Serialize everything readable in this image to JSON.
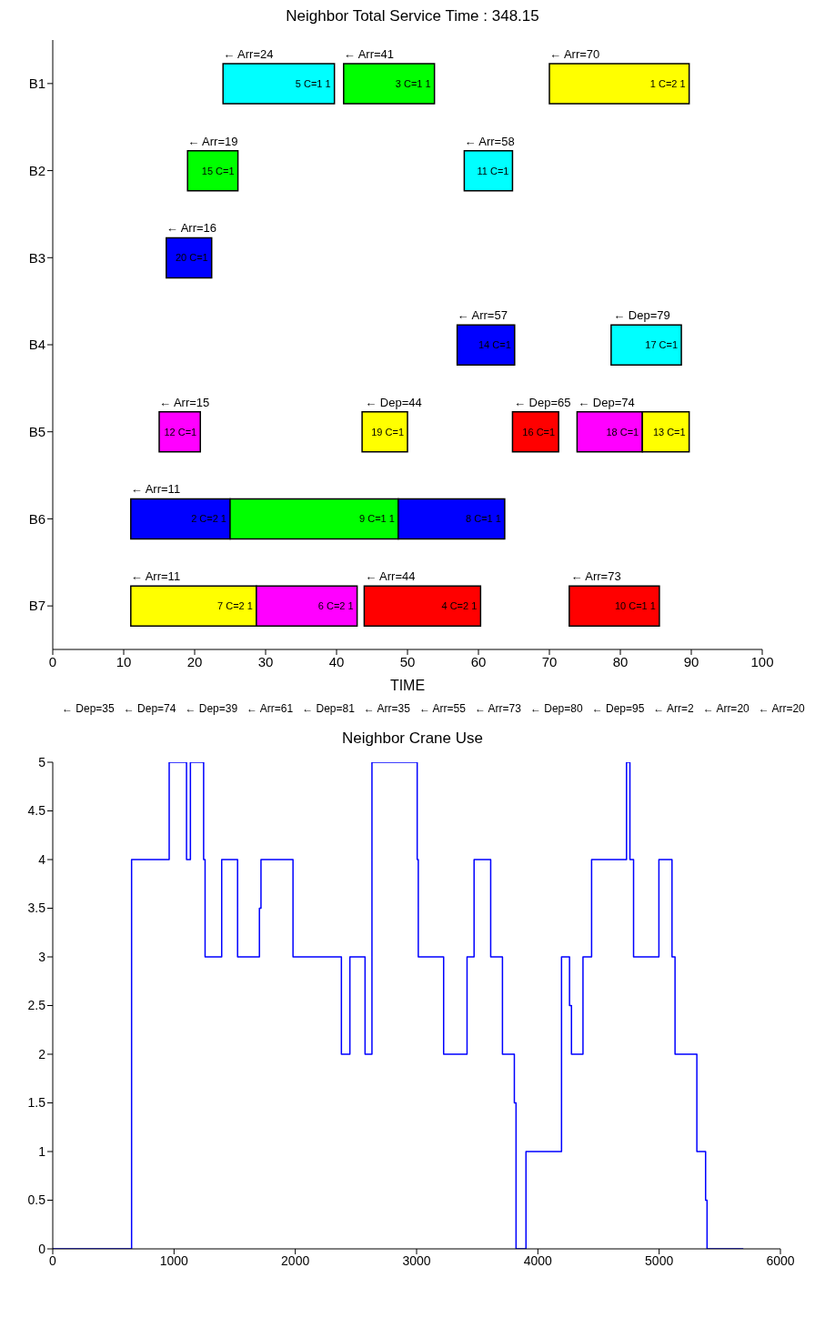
{
  "chart_data": [
    {
      "type": "bar",
      "title": "Neighbor Total Service Time :  348.15",
      "xlabel": "TIME",
      "orientation": "horizontal",
      "categories": [
        "B1",
        "B2",
        "B3",
        "B4",
        "B5",
        "B6",
        "B7"
      ],
      "xlim": [
        0,
        100
      ],
      "xticks": [
        0,
        10,
        20,
        30,
        40,
        50,
        60,
        70,
        80,
        90,
        100
      ],
      "series": [
        {
          "values": [
            15.7,
            7.1,
            6.4,
            8.1,
            5.8,
            14,
            17.7
          ],
          "base": [
            24,
            19,
            16,
            57,
            15,
            11,
            11
          ],
          "colors": [
            "#00ffff",
            "#00ff00",
            "#0000ff",
            "#0000ff",
            "#ff00ff",
            "#0000ff",
            "#ffff00"
          ]
        },
        {
          "values": [
            12.8,
            6.8,
            null,
            9.9,
            6.4,
            23.7,
            14.2
          ],
          "base": [
            41,
            58,
            null,
            78.7,
            43.6,
            25,
            28.7
          ],
          "colors": [
            "#00ff00",
            "#00ffff",
            null,
            "#00ffff",
            "#ffff00",
            "#00ff00",
            "#ff00ff"
          ]
        },
        {
          "values": [
            19.7,
            null,
            null,
            null,
            6.5,
            15,
            16.4
          ],
          "base": [
            70,
            null,
            null,
            null,
            64.8,
            48.7,
            43.9
          ],
          "colors": [
            "#ffff00",
            null,
            null,
            null,
            "#ff0000",
            "#0000ff",
            "#ff0000"
          ]
        },
        {
          "values": [
            null,
            null,
            null,
            null,
            9.2,
            null,
            12.7
          ],
          "base": [
            null,
            null,
            null,
            null,
            73.9,
            null,
            72.8
          ],
          "colors": [
            null,
            null,
            null,
            null,
            "#ff00ff",
            null,
            "#ff0000"
          ]
        },
        {
          "values": [
            null,
            null,
            null,
            null,
            6.6,
            null,
            null
          ],
          "base": [
            null,
            null,
            null,
            null,
            83.1,
            null,
            null
          ],
          "colors": [
            null,
            null,
            null,
            null,
            "#ffff00",
            null,
            null
          ]
        }
      ],
      "annotations": [
        {
          "text": "5 C=1 1",
          "x": 39.7,
          "y": "B1"
        },
        {
          "text": "3 C=1 1",
          "x": 53.8,
          "y": "B1"
        },
        {
          "text": "1 C=2 1",
          "x": 89.7,
          "y": "B1"
        },
        {
          "text": "15 C=1",
          "x": 26.1,
          "y": "B2"
        },
        {
          "text": "11 C=1",
          "x": 64.8,
          "y": "B2"
        },
        {
          "text": "20 C=1",
          "x": 22.4,
          "y": "B3"
        },
        {
          "text": "14 C=1",
          "x": 65.1,
          "y": "B4"
        },
        {
          "text": "17 C=1",
          "x": 88.6,
          "y": "B4"
        },
        {
          "text": "12 C=1",
          "x": 20.8,
          "y": "B5"
        },
        {
          "text": "19 C=1",
          "x": 50,
          "y": "B5"
        },
        {
          "text": "16 C=1",
          "x": 71.3,
          "y": "B5"
        },
        {
          "text": "18 C=1",
          "x": 83.1,
          "y": "B5"
        },
        {
          "text": "13 C=1",
          "x": 89.7,
          "y": "B5"
        },
        {
          "text": "2 C=2 1",
          "x": 25,
          "y": "B6"
        },
        {
          "text": "9 C=1 1",
          "x": 48.7,
          "y": "B6"
        },
        {
          "text": "8 C=1 1",
          "x": 63.7,
          "y": "B6"
        },
        {
          "text": "7 C=2 1",
          "x": 28.7,
          "y": "B7"
        },
        {
          "text": "6 C=2 1",
          "x": 42.9,
          "y": "B7"
        },
        {
          "text": "4 C=2 1",
          "x": 60.3,
          "y": "B7"
        },
        {
          "text": "10 C=1 1",
          "x": 85.5,
          "y": "B7"
        },
        {
          "text": "← Arr=24",
          "x": 24,
          "y": "B1"
        },
        {
          "text": "← Arr=41",
          "x": 41,
          "y": "B1"
        },
        {
          "text": "← Arr=70",
          "x": 70,
          "y": "B1"
        },
        {
          "text": "← Arr=19",
          "x": 19,
          "y": "B2"
        },
        {
          "text": "← Arr=58",
          "x": 58,
          "y": "B2"
        },
        {
          "text": "← Arr=16",
          "x": 16,
          "y": "B3"
        },
        {
          "text": "← Arr=57",
          "x": 57,
          "y": "B4"
        },
        {
          "text": "← Dep=79",
          "x": 79,
          "y": "B4"
        },
        {
          "text": "← Arr=15",
          "x": 15,
          "y": "B5"
        },
        {
          "text": "← Dep=44",
          "x": 44,
          "y": "B5"
        },
        {
          "text": "← Dep=65",
          "x": 65,
          "y": "B5"
        },
        {
          "text": "← Dep=74",
          "x": 74,
          "y": "B5"
        },
        {
          "text": "← Arr=11",
          "x": 11,
          "y": "B6"
        },
        {
          "text": "← Arr=11",
          "x": 11,
          "y": "B7"
        },
        {
          "text": "← Arr=44",
          "x": 44,
          "y": "B7"
        },
        {
          "text": "← Arr=73",
          "x": 73,
          "y": "B7"
        },
        "← Dep=35",
        "← Dep=74",
        "← Dep=39",
        "← Arr=61",
        "← Dep=81",
        "← Arr=35",
        "← Arr=55",
        "← Arr=73",
        "← Dep=80",
        "← Dep=95",
        "← Arr=2",
        "← Arr=20",
        "← Arr=20"
      ]
    },
    {
      "type": "step",
      "title": "Neighbor Crane Use",
      "color": "#0000ff",
      "x": [
        0,
        650,
        960,
        1103,
        1135,
        1244,
        1256,
        1393,
        1524,
        1704,
        1717,
        1981,
        2380,
        2450,
        2575,
        2632,
        3005,
        3014,
        3223,
        3416,
        3474,
        3611,
        3708,
        3806,
        3820,
        3902,
        4195,
        4261,
        4277,
        4372,
        4443,
        4731,
        4759,
        4789,
        4998,
        5106,
        5131,
        5311,
        5383,
        5395,
        5694
      ],
      "values": [
        0,
        4,
        5,
        4,
        5,
        4,
        3,
        4,
        3,
        3.5,
        4,
        3,
        2,
        3,
        2,
        5,
        4,
        3,
        2,
        3,
        4,
        3,
        2,
        1.5,
        0,
        1,
        3,
        2.5,
        2,
        3,
        4,
        5,
        4,
        3,
        4,
        3,
        2,
        1,
        0.5,
        0,
        0
      ],
      "xlim": [
        0,
        6000
      ],
      "xticks": [
        0,
        1000,
        2000,
        3000,
        4000,
        5000,
        6000
      ],
      "ylim": [
        0,
        5
      ],
      "yticks": [
        0,
        0.5,
        1,
        1.5,
        2,
        2.5,
        3,
        3.5,
        4,
        4.5,
        5
      ]
    }
  ]
}
